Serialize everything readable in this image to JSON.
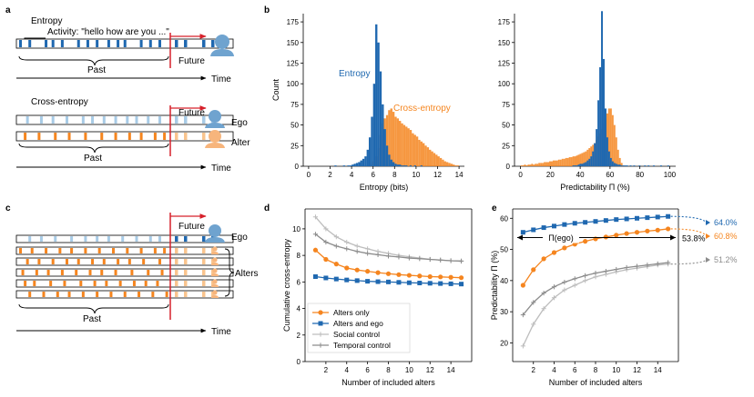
{
  "colors": {
    "blue": "#1f68b0",
    "light_blue": "#a8cbe6",
    "orange": "#f5851f",
    "light_orange": "#f9c48e",
    "gray": "#8c8c8c",
    "light_gray": "#bdbdbd",
    "red": "#d6202a",
    "ego_blue": "#6fa3cf",
    "alter_orange": "#f7b57c"
  },
  "panel_a": {
    "letter": "a",
    "entropy_title": "Entropy",
    "activity_label": "Activity: \"hello how are you ...\"",
    "past_label": "Past",
    "future_label": "Future",
    "time_label": "Time",
    "cross_title": "Cross-entropy",
    "ego_label": "Ego",
    "alter_label": "Alter",
    "past_label_2": "Past",
    "future_label_2": "Future",
    "time_label_2": "Time"
  },
  "panel_c": {
    "letter": "c",
    "future_label": "Future",
    "ego_label": "Ego",
    "alters_label": "Alters",
    "past_label": "Past",
    "time_label": "Time"
  },
  "panel_b": {
    "letter": "b"
  },
  "panel_d": {
    "letter": "d"
  },
  "panel_e": {
    "letter": "e"
  },
  "chart_data": [
    {
      "id": "b-left",
      "type": "bar",
      "xlabel": "Entropy (bits)",
      "ylabel": "Count",
      "xlim": [
        -0.5,
        14.5
      ],
      "ylim": [
        0,
        185
      ],
      "xticks": [
        0,
        2,
        4,
        6,
        8,
        10,
        12,
        14
      ],
      "yticks": [
        0,
        25,
        50,
        75,
        100,
        125,
        150,
        175
      ],
      "bin_width": 0.2,
      "annotations": [
        "Entropy",
        "Cross-entropy"
      ],
      "series": [
        {
          "name": "Entropy",
          "x_start": 2.4,
          "values": [
            1,
            0,
            0,
            0,
            1,
            0,
            1,
            1,
            2,
            3,
            4,
            5,
            7,
            9,
            12,
            20,
            35,
            60,
            100,
            172,
            150,
            115,
            75,
            45,
            25,
            14,
            8,
            5,
            3,
            2,
            2,
            1,
            1,
            1,
            0,
            1,
            0,
            1,
            0,
            0,
            1
          ]
        },
        {
          "name": "Cross-entropy",
          "x_start": 5.6,
          "values": [
            1,
            3,
            6,
            12,
            22,
            38,
            52,
            58,
            62,
            68,
            70,
            66,
            60,
            58,
            55,
            52,
            50,
            48,
            46,
            44,
            40,
            38,
            36,
            32,
            30,
            28,
            25,
            23,
            20,
            18,
            16,
            14,
            12,
            10,
            8,
            6,
            5,
            4,
            3,
            2,
            1,
            1
          ]
        }
      ]
    },
    {
      "id": "b-right",
      "type": "bar",
      "xlabel": "Predictability Π (%)",
      "ylabel": "",
      "xlim": [
        -4,
        104
      ],
      "ylim": [
        0,
        185
      ],
      "xticks": [
        0,
        20,
        40,
        60,
        80,
        100
      ],
      "yticks": [
        0,
        25,
        50,
        75,
        100,
        125,
        150,
        175
      ],
      "bin_width": 1.2,
      "series": [
        {
          "name": "Entropy",
          "x_start": 34.8,
          "values": [
            1,
            1,
            1,
            2,
            3,
            3,
            4,
            5,
            7,
            9,
            12,
            18,
            28,
            45,
            80,
            120,
            188,
            130,
            70,
            35,
            18,
            10,
            6,
            4,
            3,
            2,
            2,
            1,
            1,
            1,
            1,
            0,
            1,
            0,
            1,
            0,
            0,
            1,
            0,
            0,
            1,
            0,
            1,
            0,
            0,
            1,
            0,
            0,
            0,
            1,
            0,
            0,
            0,
            1
          ]
        },
        {
          "name": "Cross-entropy",
          "x_start": 0.0,
          "values": [
            1,
            1,
            2,
            1,
            2,
            2,
            3,
            2,
            3,
            3,
            4,
            4,
            4,
            5,
            5,
            5,
            6,
            6,
            7,
            7,
            7,
            8,
            8,
            9,
            9,
            10,
            10,
            11,
            11,
            12,
            12,
            13,
            14,
            15,
            16,
            17,
            18,
            20,
            22,
            24,
            26,
            28,
            32,
            36,
            40,
            45,
            52,
            58,
            64,
            70,
            70,
            62,
            50,
            35,
            20,
            10,
            4,
            1
          ]
        }
      ]
    },
    {
      "id": "d",
      "type": "line",
      "xlabel": "Number of included alters",
      "ylabel": "Cumulative cross-entropy",
      "xlim": [
        0,
        16
      ],
      "ylim": [
        0,
        11.5
      ],
      "xticks": [
        2,
        4,
        6,
        8,
        10,
        12,
        14
      ],
      "yticks": [
        0,
        2,
        4,
        6,
        8,
        10
      ],
      "legend_position": "lower-left",
      "x": [
        1,
        2,
        3,
        4,
        5,
        6,
        7,
        8,
        9,
        10,
        11,
        12,
        13,
        14,
        15
      ],
      "series": [
        {
          "name": "Alters only",
          "color_key": "orange",
          "marker": "circle",
          "values": [
            8.4,
            7.7,
            7.35,
            7.05,
            6.9,
            6.8,
            6.7,
            6.62,
            6.55,
            6.5,
            6.45,
            6.4,
            6.38,
            6.35,
            6.32
          ]
        },
        {
          "name": "Alters and ego",
          "color_key": "blue",
          "marker": "square",
          "values": [
            6.4,
            6.3,
            6.22,
            6.15,
            6.1,
            6.05,
            6.02,
            6.0,
            5.97,
            5.94,
            5.92,
            5.9,
            5.88,
            5.86,
            5.84
          ]
        },
        {
          "name": "Social control",
          "color_key": "light_gray",
          "marker": "plus",
          "values": [
            10.9,
            10.0,
            9.4,
            9.0,
            8.7,
            8.5,
            8.3,
            8.15,
            8.0,
            7.9,
            7.8,
            7.7,
            7.65,
            7.6,
            7.55
          ]
        },
        {
          "name": "Temporal control",
          "color_key": "gray",
          "marker": "plus",
          "values": [
            9.6,
            9.0,
            8.7,
            8.5,
            8.3,
            8.15,
            8.05,
            7.95,
            7.88,
            7.8,
            7.75,
            7.7,
            7.65,
            7.6,
            7.58
          ]
        }
      ]
    },
    {
      "id": "e",
      "type": "line",
      "xlabel": "Number of included alters",
      "ylabel": "Predictability Π (%)",
      "xlim": [
        0,
        16
      ],
      "ylim": [
        14,
        63
      ],
      "xticks": [
        2,
        4,
        6,
        8,
        10,
        12,
        14
      ],
      "yticks": [
        20,
        30,
        40,
        50,
        60
      ],
      "x": [
        1,
        2,
        3,
        4,
        5,
        6,
        7,
        8,
        9,
        10,
        11,
        12,
        13,
        14,
        15
      ],
      "reference": {
        "label": "Π(ego)",
        "value": 53.8,
        "value_label": "53.8%"
      },
      "end_labels": [
        "64.0%",
        "60.8%",
        "51.2%"
      ],
      "series": [
        {
          "name": "Alters only",
          "color_key": "orange",
          "marker": "circle",
          "values": [
            38.5,
            43.5,
            47.0,
            49.0,
            50.5,
            51.7,
            52.6,
            53.4,
            54.0,
            54.6,
            55.1,
            55.5,
            55.9,
            56.2,
            56.6
          ]
        },
        {
          "name": "Alters and ego",
          "color_key": "blue",
          "marker": "square",
          "values": [
            55.5,
            56.3,
            57.0,
            57.5,
            58.0,
            58.4,
            58.7,
            59.0,
            59.3,
            59.6,
            59.8,
            60.0,
            60.2,
            60.4,
            60.6
          ]
        },
        {
          "name": "Social control",
          "color_key": "light_gray",
          "marker": "plus",
          "values": [
            19.0,
            26.0,
            31.0,
            34.5,
            37.0,
            38.5,
            40.0,
            41.2,
            42.0,
            42.8,
            43.5,
            44.0,
            44.5,
            45.0,
            45.3
          ]
        },
        {
          "name": "Temporal control",
          "color_key": "gray",
          "marker": "plus",
          "values": [
            29.0,
            33.0,
            36.0,
            38.0,
            39.5,
            40.6,
            41.6,
            42.4,
            43.0,
            43.6,
            44.2,
            44.6,
            45.0,
            45.4,
            45.8
          ]
        }
      ]
    }
  ]
}
